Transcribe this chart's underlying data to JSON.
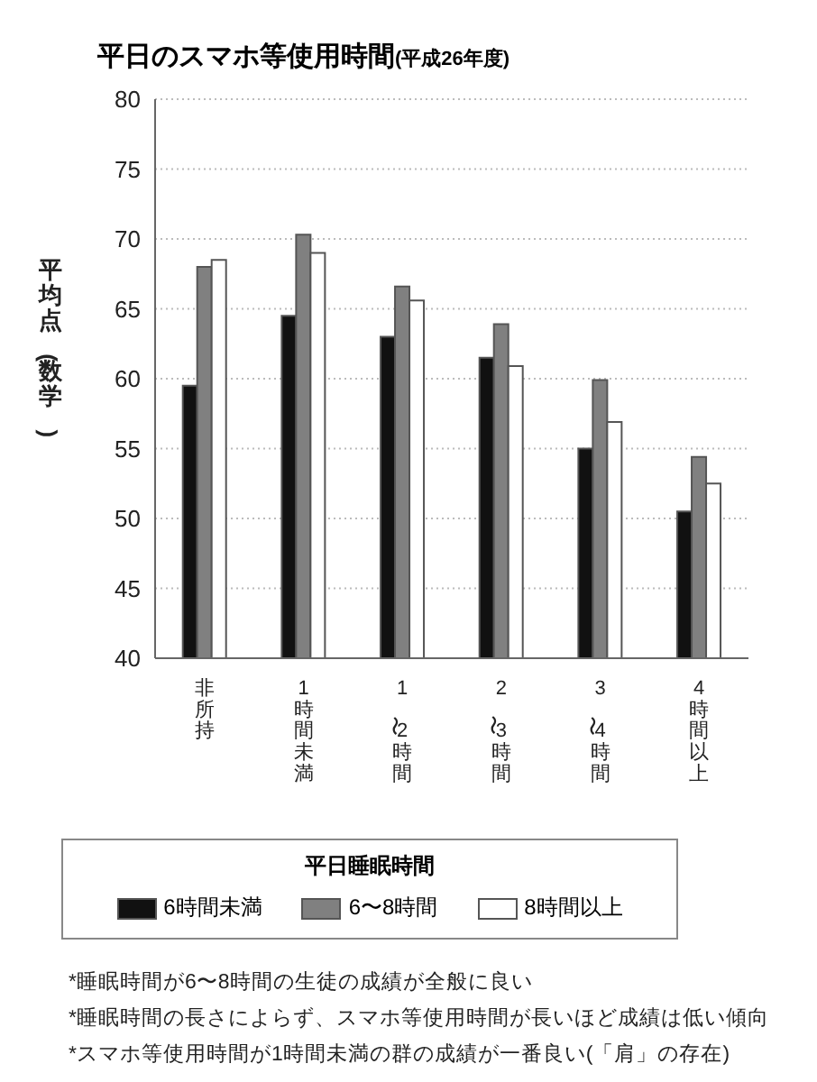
{
  "chart_data": {
    "type": "bar",
    "title": "平日のスマホ等使用時間",
    "subtitle": "(平成26年度)",
    "ylabel": "平均点(数学)",
    "legend_title": "平日睡眠時間",
    "categories": [
      "非所持",
      "1時間未満",
      "1〜2時間",
      "2〜3時間",
      "3〜4時間",
      "4時間以上"
    ],
    "series": [
      {
        "name": "6時間未満",
        "color": "#111111",
        "values": [
          59.5,
          64.5,
          63.0,
          61.5,
          55.0,
          50.5
        ]
      },
      {
        "name": "6〜8時間",
        "color": "#808080",
        "values": [
          68.0,
          70.3,
          66.6,
          63.9,
          59.9,
          54.4
        ]
      },
      {
        "name": "8時間以上",
        "color": "#ffffff",
        "values": [
          68.5,
          69.0,
          65.6,
          60.9,
          56.9,
          52.5
        ]
      }
    ],
    "ylim": [
      40,
      80
    ],
    "yticks": [
      40,
      45,
      50,
      55,
      60,
      65,
      70,
      75,
      80
    ],
    "grid": "y",
    "legend": "bottom",
    "annotations": [
      "*睡眠時間が6〜8時間の生徒の成績が全般に良い",
      "*睡眠時間の長さによらず、スマホ等使用時間が長いほど成績は低い傾向",
      "*スマホ等使用時間が1時間未満の群の成績が一番良い(「肩」の存在)"
    ]
  }
}
